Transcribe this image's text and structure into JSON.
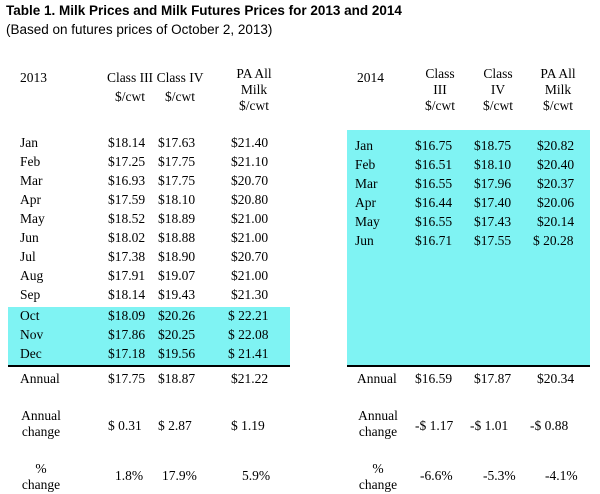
{
  "title": "Table 1.  Milk Prices and Milk Futures Prices for 2013 and 2014",
  "subtitle": "(Based on futures prices of October 2, 2013)",
  "left": {
    "year": "2013",
    "col1": [
      "Class III",
      "$/cwt"
    ],
    "col2": [
      "Class IV",
      "$/cwt"
    ],
    "col3": [
      "PA All",
      "Milk",
      "$/cwt"
    ],
    "months": [
      [
        "Jan",
        "$18.14",
        "$17.63",
        "$21.40"
      ],
      [
        "Feb",
        "$17.25",
        "$17.75",
        "$21.10"
      ],
      [
        "Mar",
        "$16.93",
        "$17.75",
        "$20.70"
      ],
      [
        "Apr",
        "$17.59",
        "$18.10",
        "$20.80"
      ],
      [
        "May",
        "$18.52",
        "$18.89",
        "$21.00"
      ],
      [
        "Jun",
        "$18.02",
        "$18.88",
        "$21.00"
      ],
      [
        "Jul",
        "$17.38",
        "$18.90",
        "$20.70"
      ],
      [
        "Aug",
        "$17.91",
        "$19.07",
        "$21.00"
      ],
      [
        "Sep",
        "$18.14",
        "$19.43",
        "$21.30"
      ],
      [
        "Oct",
        "$18.09",
        "$20.26",
        "$ 22.21"
      ],
      [
        "Nov",
        "$17.86",
        "$20.25",
        "$ 22.08"
      ],
      [
        "Dec",
        "$17.18",
        "$19.56",
        "$ 21.41"
      ]
    ],
    "annual": [
      "Annual",
      "$17.75",
      "$18.87",
      "$21.22"
    ],
    "annual_change": [
      "Annual",
      "change",
      "$ 0.31",
      "$ 2.87",
      "$ 1.19"
    ],
    "pct_change": [
      "%",
      "change",
      "1.8%",
      "17.9%",
      "5.9%"
    ]
  },
  "right": {
    "year": "2014",
    "col1": [
      "Class",
      "III",
      "$/cwt"
    ],
    "col2": [
      "Class",
      "IV",
      "$/cwt"
    ],
    "col3": [
      "PA All",
      "Milk",
      "$/cwt"
    ],
    "months": [
      [
        "Jan",
        "$16.75",
        "$18.75",
        "$20.82"
      ],
      [
        "Feb",
        "$16.51",
        "$18.10",
        "$20.40"
      ],
      [
        "Mar",
        "$16.55",
        "$17.96",
        "$20.37"
      ],
      [
        "Apr",
        "$16.44",
        "$17.40",
        "$20.06"
      ],
      [
        "May",
        "$16.55",
        "$17.43",
        "$20.14"
      ],
      [
        "Jun",
        "$16.71",
        "$17.55",
        "$ 20.28"
      ]
    ],
    "annual": [
      "Annual",
      "$16.59",
      "$17.87",
      "$20.34"
    ],
    "annual_change": [
      "Annual",
      "change",
      "-$ 1.17",
      "-$ 1.01",
      "-$ 0.88"
    ],
    "pct_change": [
      "%",
      "change",
      "-6.6%",
      "-5.3%",
      "-4.1%"
    ]
  },
  "colors": {
    "highlight": "#7ff3f3",
    "rule": "#000000"
  }
}
